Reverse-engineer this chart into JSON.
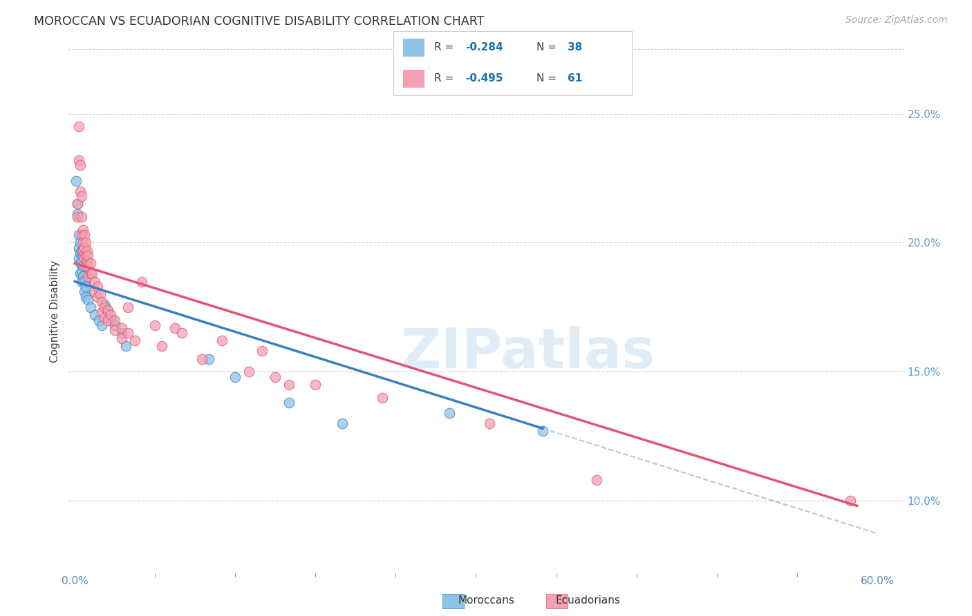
{
  "title": "MOROCCAN VS ECUADORIAN COGNITIVE DISABILITY CORRELATION CHART",
  "source": "Source: ZipAtlas.com",
  "ylabel": "Cognitive Disability",
  "right_yticks": [
    "25.0%",
    "20.0%",
    "15.0%",
    "10.0%"
  ],
  "right_ytick_vals": [
    0.25,
    0.2,
    0.15,
    0.1
  ],
  "xlim": [
    -0.005,
    0.62
  ],
  "ylim": [
    0.072,
    0.275
  ],
  "moroccan_color": "#8ec3e8",
  "ecuadorian_color": "#f4a0b0",
  "moroccan_line_color": "#3a7fc1",
  "ecuadorian_line_color": "#e05575",
  "dashed_color": "#b0c8e0",
  "moroccan_R": -0.284,
  "moroccan_N": 38,
  "ecuadorian_R": -0.495,
  "ecuadorian_N": 61,
  "watermark": "ZIPatlas",
  "moroccan_line": [
    [
      0.0,
      0.185
    ],
    [
      0.35,
      0.128
    ]
  ],
  "ecuadorian_line": [
    [
      0.0,
      0.192
    ],
    [
      0.585,
      0.098
    ]
  ],
  "moroccan_points": [
    [
      0.001,
      0.224
    ],
    [
      0.002,
      0.215
    ],
    [
      0.002,
      0.211
    ],
    [
      0.003,
      0.203
    ],
    [
      0.003,
      0.198
    ],
    [
      0.003,
      0.194
    ],
    [
      0.004,
      0.2
    ],
    [
      0.004,
      0.196
    ],
    [
      0.004,
      0.192
    ],
    [
      0.004,
      0.188
    ],
    [
      0.005,
      0.197
    ],
    [
      0.005,
      0.193
    ],
    [
      0.005,
      0.189
    ],
    [
      0.005,
      0.185
    ],
    [
      0.006,
      0.195
    ],
    [
      0.006,
      0.191
    ],
    [
      0.006,
      0.187
    ],
    [
      0.007,
      0.185
    ],
    [
      0.007,
      0.181
    ],
    [
      0.008,
      0.183
    ],
    [
      0.008,
      0.179
    ],
    [
      0.01,
      0.178
    ],
    [
      0.012,
      0.175
    ],
    [
      0.015,
      0.172
    ],
    [
      0.018,
      0.17
    ],
    [
      0.02,
      0.168
    ],
    [
      0.022,
      0.176
    ],
    [
      0.025,
      0.173
    ],
    [
      0.028,
      0.17
    ],
    [
      0.03,
      0.168
    ],
    [
      0.035,
      0.165
    ],
    [
      0.038,
      0.16
    ],
    [
      0.1,
      0.155
    ],
    [
      0.12,
      0.148
    ],
    [
      0.16,
      0.138
    ],
    [
      0.2,
      0.13
    ],
    [
      0.28,
      0.134
    ],
    [
      0.35,
      0.127
    ]
  ],
  "ecuadorian_points": [
    [
      0.002,
      0.215
    ],
    [
      0.002,
      0.21
    ],
    [
      0.003,
      0.245
    ],
    [
      0.003,
      0.232
    ],
    [
      0.004,
      0.23
    ],
    [
      0.004,
      0.22
    ],
    [
      0.005,
      0.218
    ],
    [
      0.005,
      0.21
    ],
    [
      0.005,
      0.203
    ],
    [
      0.006,
      0.205
    ],
    [
      0.006,
      0.2
    ],
    [
      0.006,
      0.197
    ],
    [
      0.007,
      0.203
    ],
    [
      0.007,
      0.198
    ],
    [
      0.007,
      0.194
    ],
    [
      0.008,
      0.2
    ],
    [
      0.008,
      0.195
    ],
    [
      0.008,
      0.191
    ],
    [
      0.009,
      0.197
    ],
    [
      0.009,
      0.193
    ],
    [
      0.01,
      0.195
    ],
    [
      0.01,
      0.191
    ],
    [
      0.01,
      0.187
    ],
    [
      0.012,
      0.192
    ],
    [
      0.012,
      0.188
    ],
    [
      0.013,
      0.188
    ],
    [
      0.015,
      0.185
    ],
    [
      0.015,
      0.181
    ],
    [
      0.017,
      0.183
    ],
    [
      0.017,
      0.179
    ],
    [
      0.019,
      0.18
    ],
    [
      0.02,
      0.177
    ],
    [
      0.02,
      0.173
    ],
    [
      0.022,
      0.175
    ],
    [
      0.022,
      0.171
    ],
    [
      0.025,
      0.174
    ],
    [
      0.025,
      0.17
    ],
    [
      0.027,
      0.172
    ],
    [
      0.03,
      0.17
    ],
    [
      0.03,
      0.166
    ],
    [
      0.035,
      0.167
    ],
    [
      0.035,
      0.163
    ],
    [
      0.04,
      0.165
    ],
    [
      0.04,
      0.175
    ],
    [
      0.045,
      0.162
    ],
    [
      0.05,
      0.185
    ],
    [
      0.06,
      0.168
    ],
    [
      0.065,
      0.16
    ],
    [
      0.075,
      0.167
    ],
    [
      0.08,
      0.165
    ],
    [
      0.095,
      0.155
    ],
    [
      0.11,
      0.162
    ],
    [
      0.13,
      0.15
    ],
    [
      0.14,
      0.158
    ],
    [
      0.15,
      0.148
    ],
    [
      0.16,
      0.145
    ],
    [
      0.18,
      0.145
    ],
    [
      0.23,
      0.14
    ],
    [
      0.31,
      0.13
    ],
    [
      0.39,
      0.108
    ],
    [
      0.58,
      0.1
    ]
  ]
}
